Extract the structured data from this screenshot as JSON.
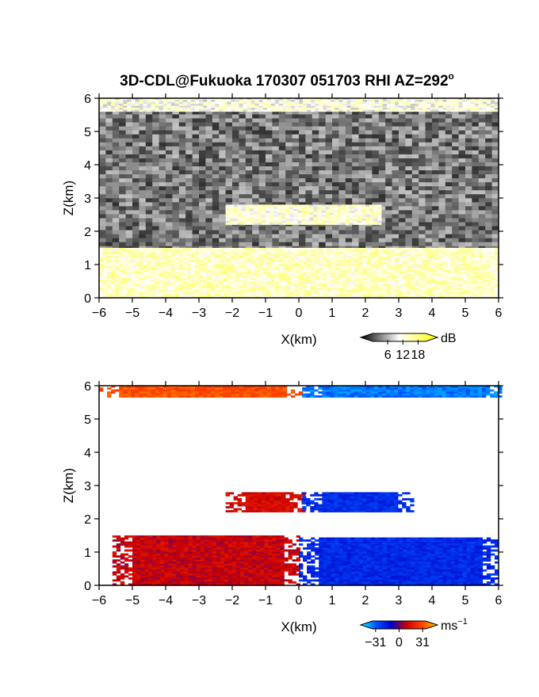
{
  "title": "3D-CDL@Fukuoka 170307 051703 RHI AZ=292",
  "title_superscript": "o",
  "chart_data": [
    {
      "type": "heatmap",
      "variable": "backscatter",
      "xlabel": "X(km)",
      "ylabel": "Z(km)",
      "xlim": [
        -6,
        6
      ],
      "ylim": [
        0,
        6
      ],
      "xticks": [
        "-6",
        "-5",
        "-4",
        "-3",
        "-2",
        "-1",
        "0",
        "1",
        "2",
        "3",
        "4",
        "5",
        "6"
      ],
      "yticks": [
        "0",
        "1",
        "2",
        "3",
        "4",
        "5",
        "6"
      ],
      "colorbar": {
        "unit": "dB",
        "ticks": [
          "6",
          "12",
          "18"
        ],
        "range": [
          0,
          21
        ],
        "colors": [
          "#000000",
          "#ffffff",
          "#ffff00"
        ]
      },
      "layers": [
        {
          "name": "top echo band",
          "z_range": [
            5.6,
            6.0
          ],
          "x_range": [
            -6,
            6
          ],
          "dB": 11
        },
        {
          "name": "mid cloud layer",
          "z_range": [
            2.2,
            2.75
          ],
          "x_range": [
            -2.2,
            2.4
          ],
          "dB": 12
        },
        {
          "name": "boundary layer",
          "z_range": [
            0,
            1.5
          ],
          "x_range": [
            -6,
            6
          ],
          "dB": 13
        }
      ]
    },
    {
      "type": "heatmap",
      "variable": "radial velocity",
      "xlabel": "X(km)",
      "ylabel": "Z(km)",
      "xlim": [
        -6,
        6
      ],
      "ylim": [
        0,
        6
      ],
      "xticks": [
        "-6",
        "-5",
        "-4",
        "-3",
        "-2",
        "-1",
        "0",
        "1",
        "2",
        "3",
        "4",
        "5",
        "6"
      ],
      "yticks": [
        "0",
        "1",
        "2",
        "3",
        "4",
        "5",
        "6"
      ],
      "colorbar": {
        "unit": "ms",
        "unit_superscript": "−1",
        "ticks": [
          "−31",
          "0",
          "31"
        ],
        "range": [
          -35,
          35
        ],
        "colors": [
          "#00ffff",
          "#0050ff",
          "#0000cc",
          "#cc0000",
          "#ff4400",
          "#ffcc00"
        ]
      },
      "layers": [
        {
          "name": "top band west",
          "z_range": [
            5.65,
            6.0
          ],
          "x_range": [
            -6.0,
            0.1
          ],
          "velocity": 22
        },
        {
          "name": "top band east",
          "z_range": [
            5.65,
            6.0
          ],
          "x_range": [
            0.1,
            6.0
          ],
          "velocity": -24
        },
        {
          "name": "mid layer west",
          "z_range": [
            2.2,
            2.75
          ],
          "x_range": [
            -2.2,
            0.1
          ],
          "velocity": 9
        },
        {
          "name": "mid layer east",
          "z_range": [
            2.2,
            2.75
          ],
          "x_range": [
            0.1,
            3.4
          ],
          "velocity": -15
        },
        {
          "name": "boundary west",
          "z_range": [
            0,
            1.5
          ],
          "x_range": [
            -5.6,
            0.0
          ],
          "velocity": 7
        },
        {
          "name": "boundary east",
          "z_range": [
            0,
            1.4
          ],
          "x_range": [
            0.0,
            6.0
          ],
          "velocity": -14
        }
      ]
    }
  ]
}
